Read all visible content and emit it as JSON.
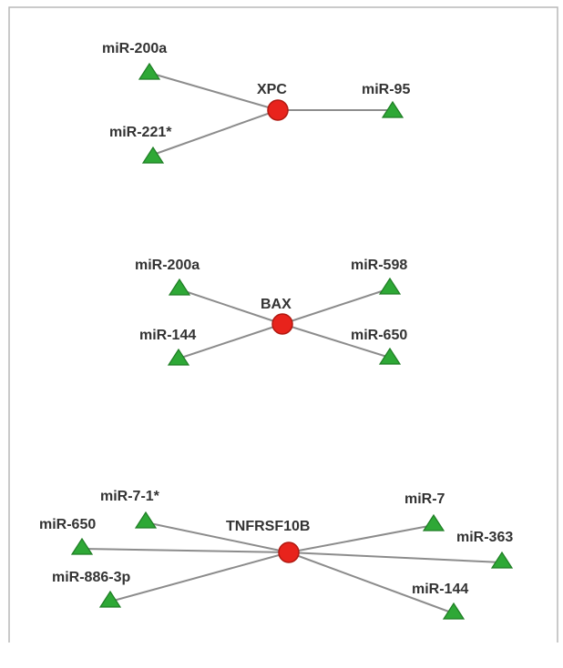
{
  "networks": [
    {
      "gene": "XPC",
      "mirnas": [
        "miR-200a",
        "miR-221*",
        "miR-95"
      ]
    },
    {
      "gene": "BAX",
      "mirnas": [
        "miR-200a",
        "miR-144",
        "miR-598",
        "miR-650"
      ]
    },
    {
      "gene": "TNFRSF10B",
      "mirnas": [
        "miR-7-1*",
        "miR-650",
        "miR-886-3p",
        "miR-7",
        "miR-363",
        "miR-144"
      ]
    }
  ],
  "colors": {
    "gene_node": "#e8231c",
    "mirna_node": "#2ea836",
    "edge": "#8c8c8c"
  },
  "legend_shapes": {
    "gene_node": "circle",
    "mirna_node": "triangle"
  }
}
